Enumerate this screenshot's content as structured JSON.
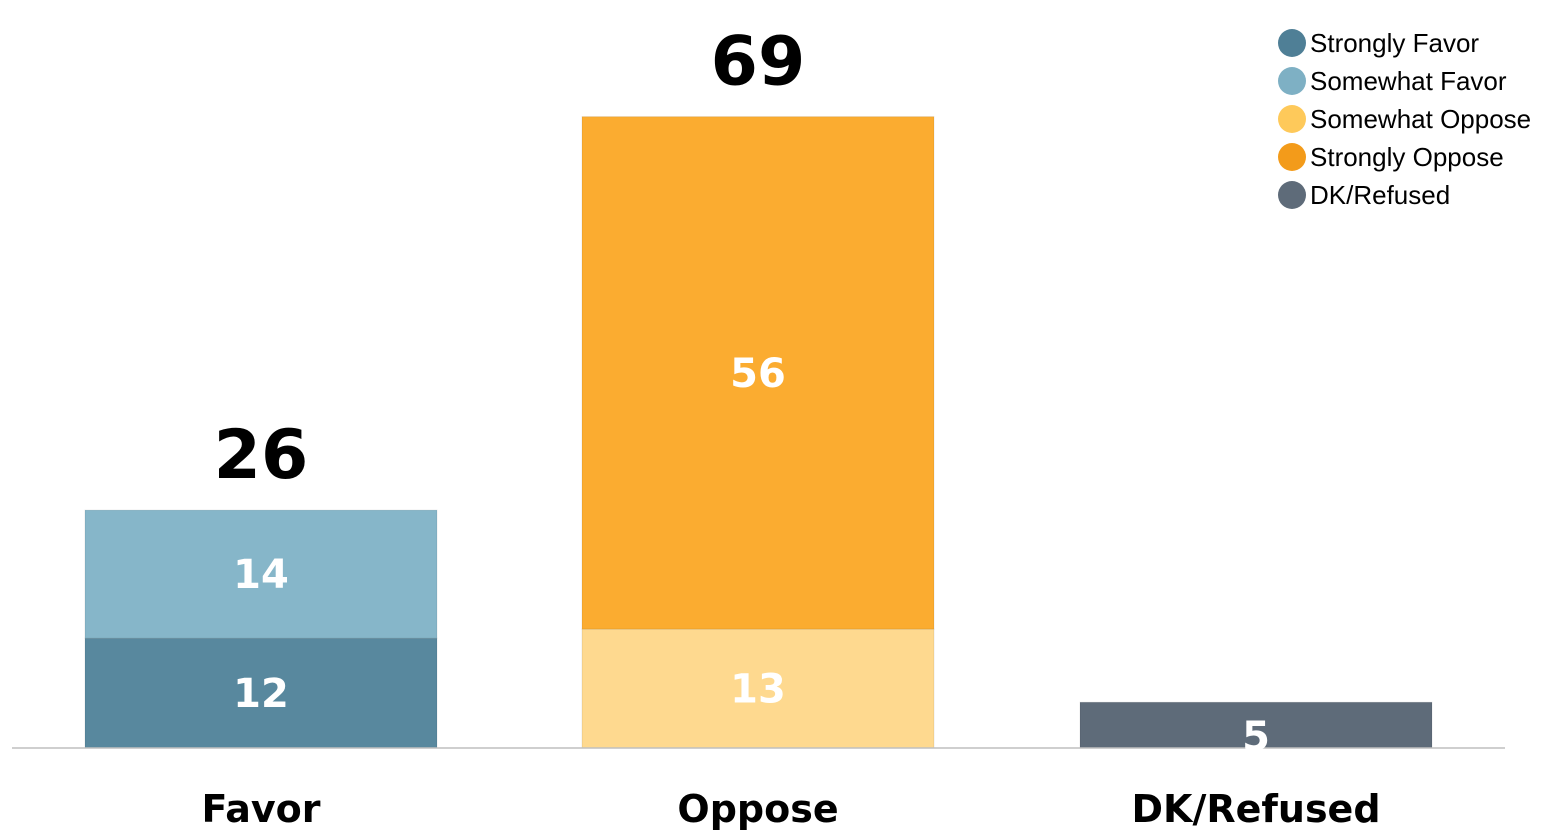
{
  "chart_data": {
    "type": "bar",
    "stacked": true,
    "categories": [
      "Favor",
      "Oppose",
      "DK/Refused"
    ],
    "totals": [
      "26",
      "69",
      ""
    ],
    "ylim": [
      0,
      80
    ],
    "grid": false,
    "legend_position": "top-right",
    "series": [
      {
        "name": "Strongly Favor",
        "color": "#58889e",
        "values": [
          12,
          0,
          0
        ],
        "labels": [
          "12",
          "",
          ""
        ]
      },
      {
        "name": "Somewhat Favor",
        "color": "#86b6c9",
        "values": [
          14,
          0,
          0
        ],
        "labels": [
          "14",
          "",
          ""
        ]
      },
      {
        "name": "Somewhat Oppose",
        "color": "#fed98f",
        "values": [
          0,
          13,
          0
        ],
        "labels": [
          "",
          "13",
          ""
        ]
      },
      {
        "name": "Strongly Oppose",
        "color": "#fbac30",
        "values": [
          0,
          56,
          0
        ],
        "labels": [
          "",
          "56",
          ""
        ]
      },
      {
        "name": "DK/Refused",
        "color": "#5e6b79",
        "values": [
          0,
          0,
          5
        ],
        "labels": [
          "",
          "",
          "5"
        ]
      }
    ]
  },
  "legend": {
    "items": [
      {
        "label": "Strongly Favor",
        "color": "#4f7f96"
      },
      {
        "label": "Somewhat Favor",
        "color": "#7eb0c4"
      },
      {
        "label": "Somewhat Oppose",
        "color": "#fec95a"
      },
      {
        "label": "Strongly Oppose",
        "color": "#f39b1a"
      },
      {
        "label": "DK/Refused",
        "color": "#5e6b79"
      }
    ]
  }
}
